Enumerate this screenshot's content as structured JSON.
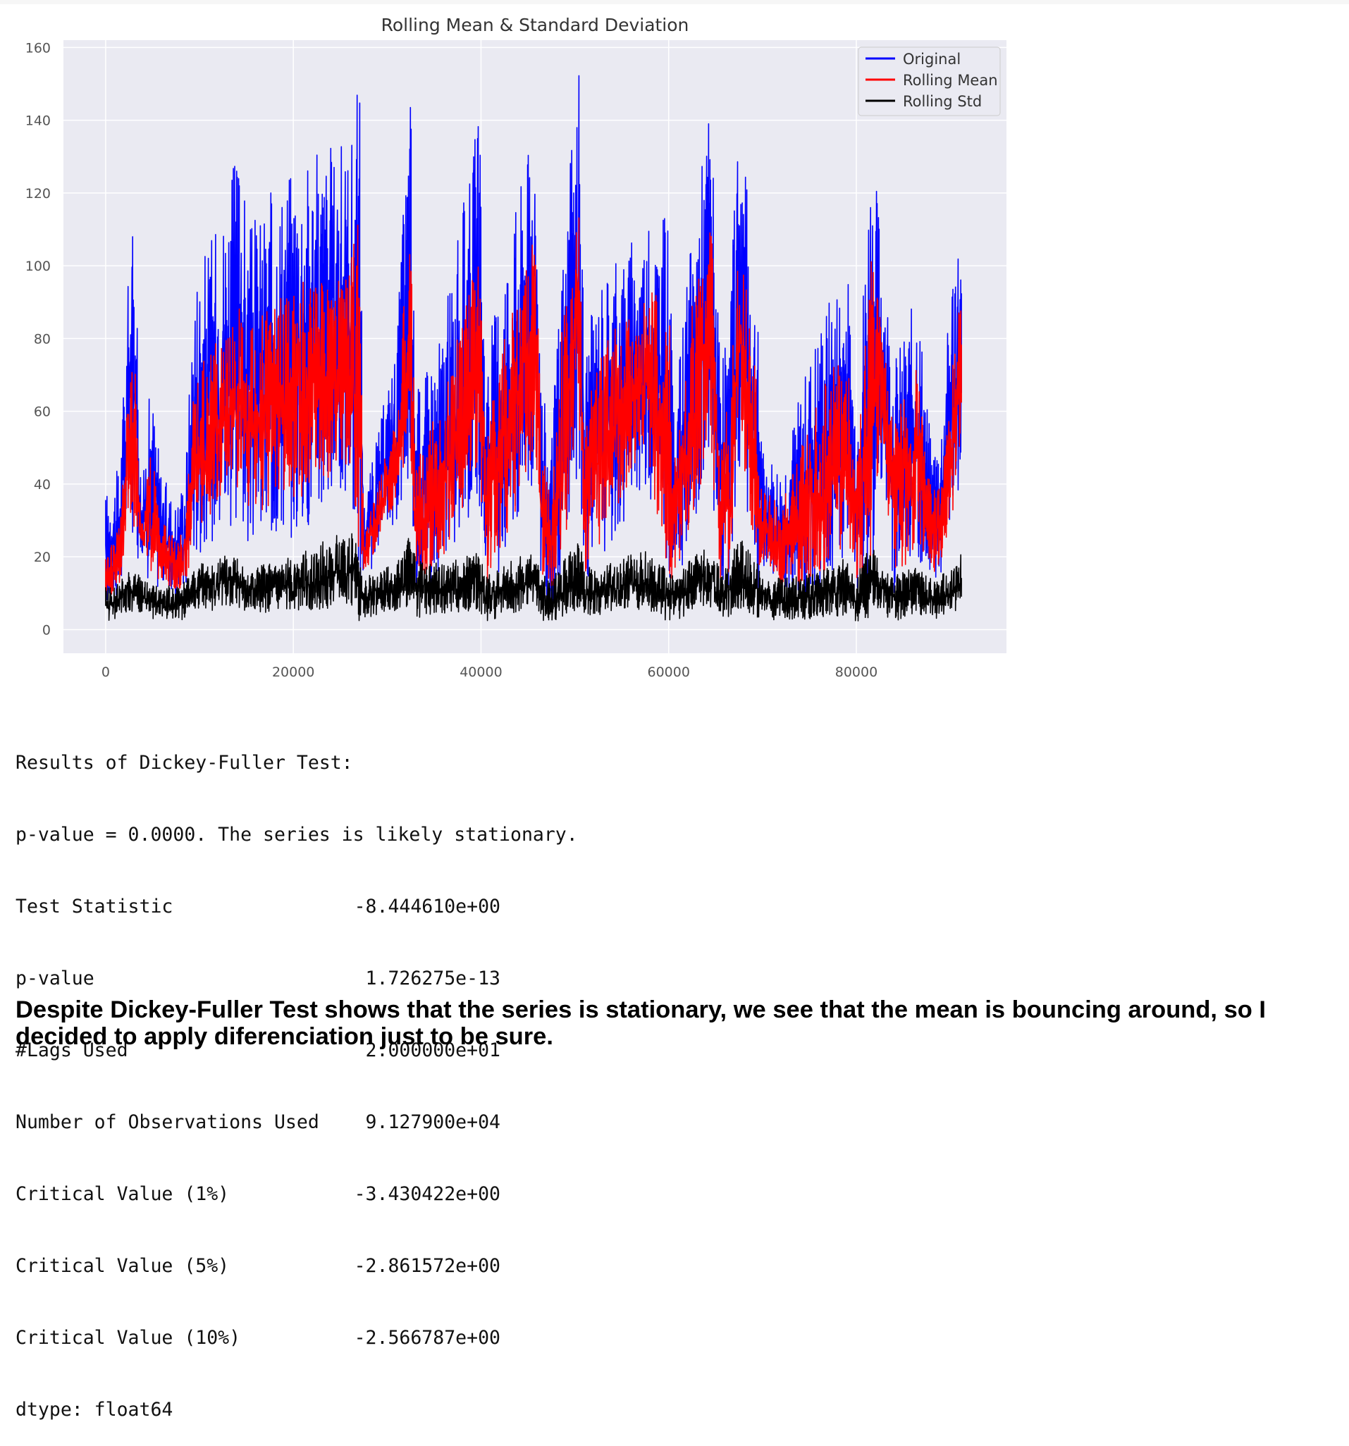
{
  "chart_data": {
    "type": "line",
    "title": "Rolling Mean & Standard Deviation",
    "xlabel": "",
    "ylabel": "",
    "xlim": [
      -4500,
      96000
    ],
    "ylim": [
      -6.5,
      162
    ],
    "x_ticks": [
      0,
      20000,
      40000,
      60000,
      80000
    ],
    "x_tick_labels": [
      "0",
      "20000",
      "40000",
      "60000",
      "80000"
    ],
    "y_ticks": [
      0,
      20,
      40,
      60,
      80,
      100,
      120,
      140,
      160
    ],
    "y_tick_labels": [
      "0",
      "20",
      "40",
      "60",
      "80",
      "100",
      "120",
      "140",
      "160"
    ],
    "grid": true,
    "legend_position": "upper right",
    "style": {
      "background": "#eaeaf2",
      "grid_color": "#ffffff"
    },
    "series": [
      {
        "name": "Original",
        "color": "#0000ff",
        "x": [
          0,
          1500,
          2500,
          3200,
          3800,
          4800,
          6000,
          7500,
          8500,
          9500,
          12000,
          14500,
          15000,
          20000,
          26000,
          27100,
          27500,
          31000,
          32500,
          33000,
          36000,
          39800,
          40500,
          42500,
          45800,
          46500,
          47500,
          48500,
          50500,
          51000,
          53000,
          57500,
          60000,
          60500,
          62500,
          64500,
          65500,
          66500,
          67500,
          69500,
          70000,
          72000,
          76000,
          79000,
          80000,
          81500,
          82500,
          84000,
          85000,
          86500,
          88000,
          89000,
          90500,
          91200
        ],
        "low": [
          5,
          10,
          25,
          18,
          22,
          10,
          12,
          8,
          10,
          20,
          25,
          30,
          22,
          25,
          35,
          10,
          12,
          30,
          40,
          10,
          15,
          35,
          10,
          18,
          40,
          8,
          5,
          12,
          45,
          12,
          20,
          40,
          10,
          10,
          25,
          40,
          10,
          12,
          45,
          10,
          15,
          8,
          10,
          20,
          10,
          12,
          40,
          10,
          12,
          20,
          12,
          15,
          30,
          40
        ],
        "high": [
          38,
          45,
          103,
          115,
          35,
          70,
          43,
          35,
          45,
          100,
          112,
          137,
          110,
          130,
          135,
          154,
          35,
          80,
          155,
          65,
          85,
          143,
          75,
          105,
          143,
          70,
          50,
          100,
          155,
          80,
          100,
          110,
          117,
          60,
          110,
          151,
          70,
          85,
          150,
          85,
          50,
          45,
          85,
          102,
          60,
          135,
          115,
          75,
          80,
          94,
          50,
          55,
          111,
          105
        ]
      },
      {
        "name": "Rolling Mean",
        "color": "#ff0000",
        "x": [
          0,
          1500,
          2500,
          3200,
          3800,
          4800,
          6000,
          7500,
          8500,
          9500,
          12000,
          14500,
          15000,
          20000,
          26000,
          27100,
          27500,
          31000,
          32500,
          33000,
          36000,
          39800,
          40500,
          42500,
          45800,
          46500,
          47500,
          48500,
          50500,
          51000,
          53000,
          57500,
          60000,
          60500,
          62500,
          64500,
          65500,
          66500,
          67500,
          69500,
          70000,
          72000,
          76000,
          79000,
          80000,
          81500,
          82500,
          84000,
          85000,
          86500,
          88000,
          89000,
          90500,
          91200
        ],
        "low": [
          8,
          12,
          30,
          22,
          25,
          12,
          14,
          10,
          12,
          25,
          35,
          40,
          30,
          35,
          45,
          12,
          15,
          35,
          50,
          12,
          20,
          45,
          12,
          22,
          50,
          10,
          8,
          15,
          55,
          15,
          25,
          50,
          12,
          12,
          30,
          50,
          12,
          15,
          55,
          12,
          18,
          10,
          12,
          25,
          12,
          15,
          50,
          12,
          15,
          25,
          15,
          18,
          35,
          50
        ],
        "high": [
          20,
          30,
          70,
          72,
          28,
          50,
          30,
          25,
          30,
          70,
          80,
          90,
          82,
          95,
          100,
          123,
          25,
          60,
          117,
          45,
          65,
          105,
          55,
          85,
          110,
          50,
          35,
          80,
          119,
          60,
          80,
          90,
          100,
          45,
          90,
          115,
          55,
          65,
          112,
          65,
          38,
          35,
          65,
          80,
          45,
          108,
          90,
          55,
          65,
          72,
          38,
          40,
          80,
          92
        ]
      },
      {
        "name": "Rolling Std",
        "color": "#000000",
        "x": [
          0,
          1500,
          2500,
          3200,
          3800,
          4800,
          6000,
          7500,
          8500,
          9500,
          12000,
          14500,
          15000,
          20000,
          26000,
          27100,
          27500,
          31000,
          32500,
          33000,
          36000,
          39800,
          40500,
          42500,
          45800,
          46500,
          47500,
          48500,
          50500,
          51000,
          53000,
          57500,
          60000,
          60500,
          62500,
          64500,
          65500,
          66500,
          67500,
          69500,
          70000,
          72000,
          76000,
          79000,
          80000,
          81500,
          82500,
          84000,
          85000,
          86500,
          88000,
          89000,
          90500,
          91200
        ],
        "low": [
          2,
          3,
          5,
          4,
          4,
          3,
          3,
          2,
          3,
          5,
          5,
          6,
          4,
          5,
          6,
          2,
          3,
          5,
          6,
          3,
          4,
          5,
          2,
          4,
          6,
          2,
          1,
          3,
          6,
          3,
          4,
          5,
          2,
          2,
          5,
          6,
          2,
          3,
          6,
          2,
          3,
          2,
          3,
          4,
          2,
          3,
          5,
          2,
          3,
          4,
          3,
          3,
          5,
          6
        ],
        "high": [
          12,
          13,
          18,
          17,
          14,
          13,
          12,
          12,
          14,
          18,
          20,
          22,
          17,
          20,
          28,
          23,
          15,
          18,
          28,
          20,
          18,
          22,
          15,
          18,
          22,
          15,
          14,
          18,
          25,
          17,
          18,
          22,
          18,
          15,
          20,
          24,
          16,
          18,
          27,
          18,
          15,
          14,
          16,
          20,
          14,
          25,
          20,
          15,
          16,
          18,
          14,
          15,
          18,
          21
        ]
      }
    ]
  },
  "df_output": {
    "header": "Results of Dickey-Fuller Test:",
    "pvalue_line": "p-value = 0.0000. The series is likely stationary.",
    "rows": [
      {
        "name": "Test Statistic",
        "value": "-8.444610e+00"
      },
      {
        "name": "p-value",
        "value": "1.726275e-13"
      },
      {
        "name": "#Lags Used",
        "value": "2.000000e+01"
      },
      {
        "name": "Number of Observations Used",
        "value": "9.127900e+04"
      },
      {
        "name": "Critical Value (1%)",
        "value": "-3.430422e+00"
      },
      {
        "name": "Critical Value (5%)",
        "value": "-2.861572e+00"
      },
      {
        "name": "Critical Value (10%)",
        "value": "-2.566787e+00"
      }
    ],
    "dtype_line": "dtype: float64"
  },
  "note": "Despite Dickey-Fuller Test shows that the series is stationary, we see that the mean is bouncing around, so I decided to apply diferenciation just to be sure."
}
